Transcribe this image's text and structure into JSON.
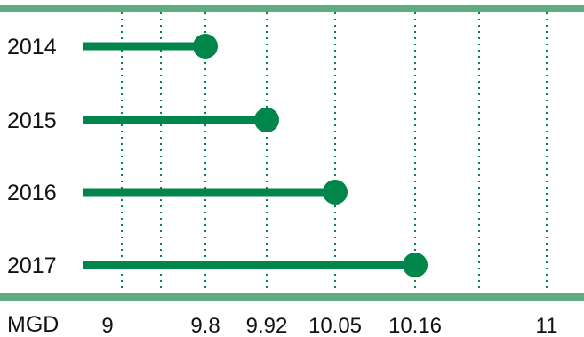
{
  "chart_data": {
    "type": "lollipop",
    "orientation": "horizontal",
    "unit_label": "MGD",
    "categories": [
      "2014",
      "2015",
      "2016",
      "2017"
    ],
    "values": [
      9.8,
      9.92,
      10.05,
      10.16
    ],
    "x_ticks": [
      {
        "value": 9,
        "label": "9"
      },
      {
        "value": 9.8,
        "label": "9.8"
      },
      {
        "value": 9.92,
        "label": "9.92"
      },
      {
        "value": 10.05,
        "label": "10.05"
      },
      {
        "value": 10.16,
        "label": "10.16"
      },
      {
        "value": 11,
        "label": "11"
      }
    ],
    "unlabeled_gridlines": [
      9.25,
      10.4
    ],
    "grid": "vertical-dotted",
    "colors": {
      "mark": "#00864a",
      "frame_rule": "#5fac80",
      "gridline": "#00864a"
    }
  }
}
